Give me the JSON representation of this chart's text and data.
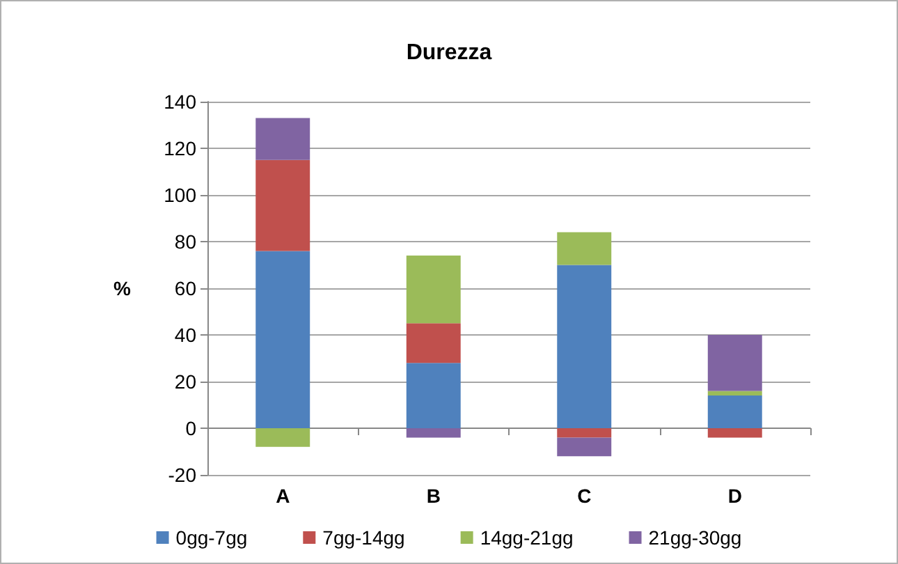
{
  "chart_data": {
    "type": "bar",
    "title": "Durezza",
    "ylabel": "%",
    "categories": [
      "A",
      "B",
      "C",
      "D"
    ],
    "series": [
      {
        "name": "0gg-7gg",
        "color": "#4f81bd",
        "values": [
          76,
          28,
          70,
          14
        ]
      },
      {
        "name": "7gg-14gg",
        "color": "#c0504d",
        "values": [
          39,
          17,
          -4,
          -4
        ]
      },
      {
        "name": "14gg-21gg",
        "color": "#9bbb59",
        "values": [
          -8,
          29,
          14,
          2
        ]
      },
      {
        "name": "21gg-30gg",
        "color": "#8064a2",
        "values": [
          18,
          -4,
          -8,
          24
        ]
      }
    ],
    "stacked": true,
    "ylim": [
      -20,
      140
    ],
    "yticks": [
      -20,
      0,
      20,
      40,
      60,
      80,
      100,
      120,
      140
    ],
    "grid": "y",
    "legend": "bottom"
  }
}
